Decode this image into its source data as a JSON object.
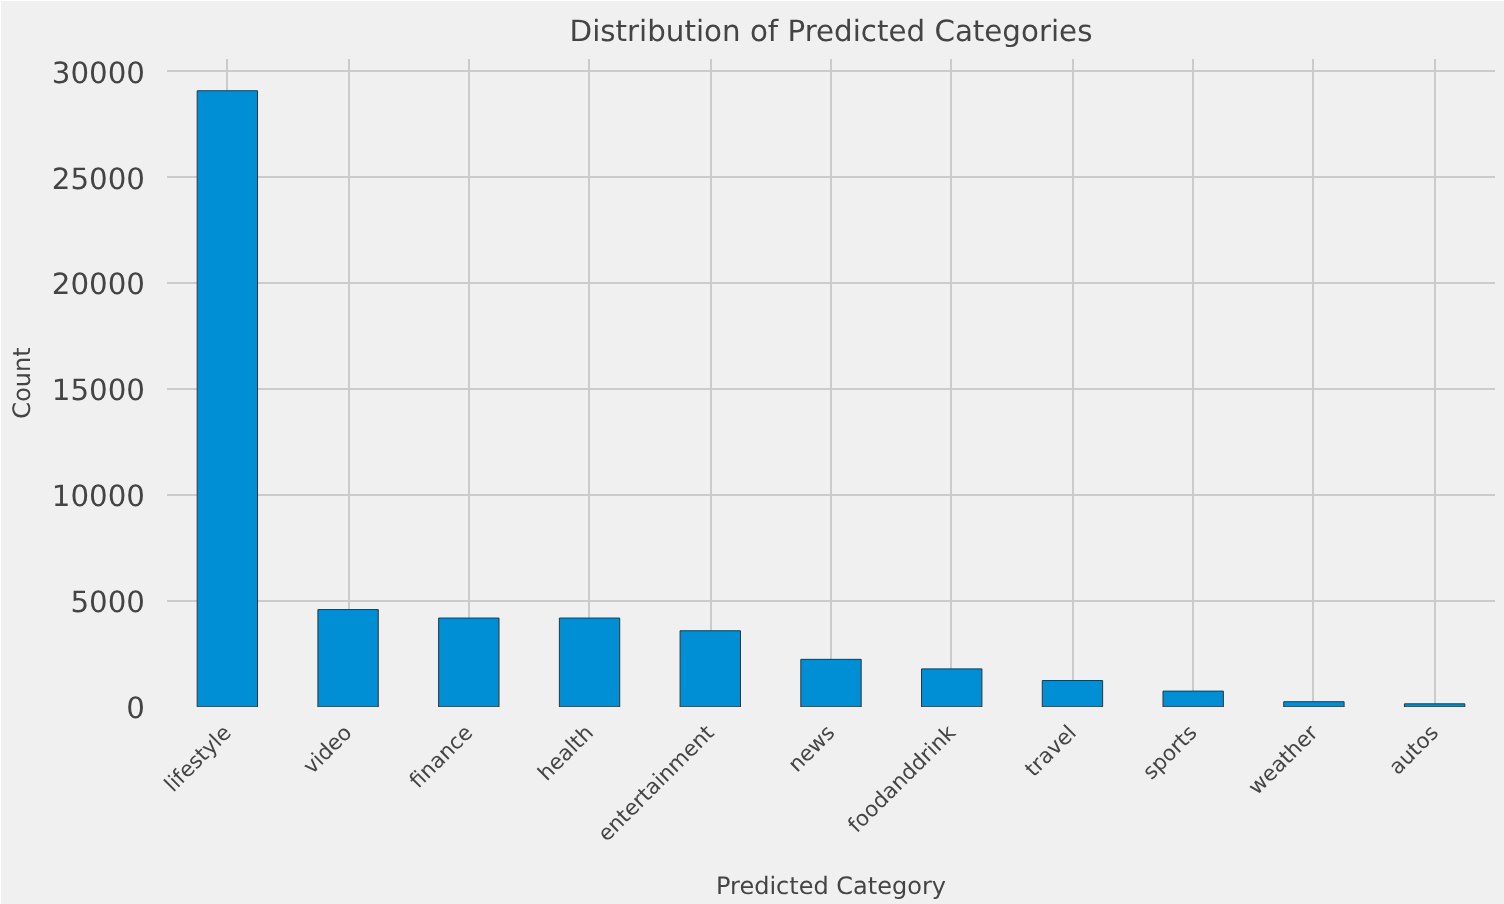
{
  "chart_data": {
    "type": "bar",
    "title": "Distribution of Predicted Categories",
    "xlabel": "Predicted Category",
    "ylabel": "Count",
    "categories": [
      "lifestyle",
      "video",
      "finance",
      "health",
      "entertainment",
      "news",
      "foodanddrink",
      "travel",
      "sports",
      "weather",
      "autos"
    ],
    "values": [
      29100,
      4600,
      4200,
      4200,
      3600,
      2250,
      1800,
      1250,
      750,
      250,
      150
    ],
    "color": "#008fd5",
    "ylim": [
      0,
      30600
    ],
    "yticks": [
      0,
      5000,
      10000,
      15000,
      20000,
      25000,
      30000
    ],
    "grid": true
  }
}
